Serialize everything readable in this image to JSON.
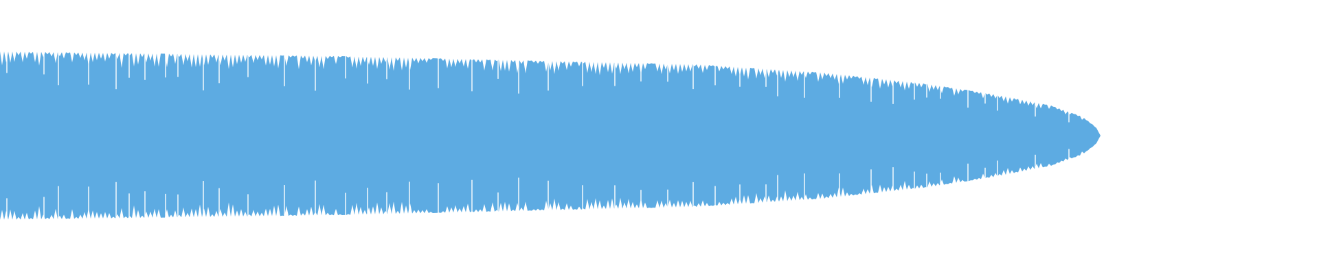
{
  "waveform": {
    "color": "#5dabe2"
  }
}
